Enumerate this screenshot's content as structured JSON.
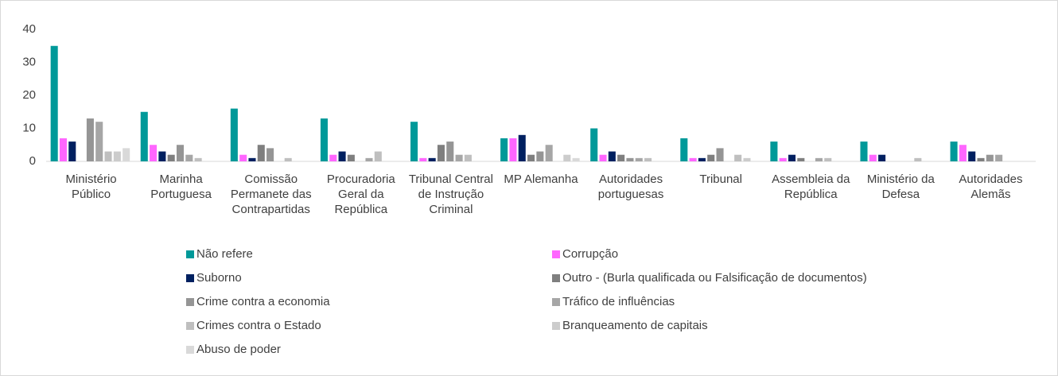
{
  "chart_data": {
    "type": "bar",
    "categories": [
      "Ministério Público",
      "Marinha Portuguesa",
      "Comissão Permanete das Contrapartidas",
      "Procuradoria Geral da República",
      "Tribunal Central de Instrução Criminal",
      "MP Alemanha",
      "Autoridades portuguesas",
      "Tribunal",
      "Assembleia da República",
      "Ministério da Defesa",
      "Autoridades Alemãs"
    ],
    "series": [
      {
        "name": "Não refere",
        "color": "#009999",
        "values": [
          35,
          15,
          16,
          13,
          12,
          7,
          10,
          7,
          6,
          6,
          6
        ]
      },
      {
        "name": "Corrupção",
        "color": "#ff66ff",
        "values": [
          7,
          5,
          2,
          2,
          1,
          7,
          2,
          1,
          1,
          2,
          5
        ]
      },
      {
        "name": "Suborno",
        "color": "#002060",
        "values": [
          6,
          3,
          1,
          3,
          1,
          8,
          3,
          1,
          2,
          2,
          3
        ]
      },
      {
        "name": "Outro - (Burla qualificada ou Falsificação de documentos)",
        "color": "#7f7f7f",
        "values": [
          0,
          2,
          5,
          2,
          5,
          2,
          2,
          2,
          1,
          0,
          1
        ]
      },
      {
        "name": "Crime contra a economia",
        "color": "#959595",
        "values": [
          13,
          5,
          4,
          0,
          6,
          3,
          1,
          4,
          0,
          0,
          2
        ]
      },
      {
        "name": "Tráfico de influências",
        "color": "#a6a6a6",
        "values": [
          12,
          2,
          0,
          1,
          2,
          5,
          1,
          0,
          1,
          0,
          2
        ]
      },
      {
        "name": "Crimes contra o Estado",
        "color": "#bfbfbf",
        "values": [
          3,
          1,
          1,
          3,
          2,
          0,
          1,
          2,
          1,
          1,
          0
        ]
      },
      {
        "name": "Branqueamento de capitais",
        "color": "#cccccc",
        "values": [
          3,
          0,
          0,
          0,
          0,
          2,
          0,
          1,
          0,
          0,
          0
        ]
      },
      {
        "name": "Abuso de poder",
        "color": "#d9d9d9",
        "values": [
          4,
          0,
          0,
          0,
          0,
          1,
          0,
          0,
          0,
          0,
          0
        ]
      }
    ],
    "ylim": [
      0,
      40
    ],
    "yticks": [
      0,
      10,
      20,
      30,
      40
    ],
    "grid": false
  }
}
